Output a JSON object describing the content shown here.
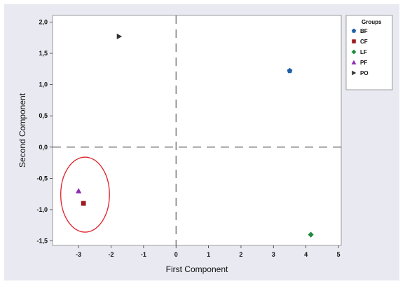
{
  "chart_data": {
    "type": "scatter",
    "xlabel": "First Component",
    "ylabel": "Second Component",
    "xlim": [
      -3.5,
      5.0
    ],
    "ylim": [
      -1.55,
      2.05
    ],
    "x_ticks": [
      "-3",
      "-2",
      "-1",
      "0",
      "1",
      "2",
      "3",
      "4",
      "5"
    ],
    "x_tick_values": [
      -3,
      -2,
      -1,
      0,
      1,
      2,
      3,
      4,
      5
    ],
    "y_ticks": [
      "2,0",
      "1,5",
      "1,0",
      "0,5",
      "0,0",
      "-0,5",
      "-1,0",
      "-1,5"
    ],
    "y_tick_values": [
      2.0,
      1.5,
      1.0,
      0.5,
      0.0,
      -0.5,
      -1.0,
      -1.5
    ],
    "grid": false,
    "reference_lines": {
      "x": 0,
      "y": 0,
      "style": "dashed"
    },
    "legend": {
      "title": "Groups",
      "placement": "right-top",
      "entries": [
        {
          "label": "BF",
          "marker": "pentagon",
          "color": "#1f5fa8"
        },
        {
          "label": "CF",
          "marker": "square",
          "color": "#9b1b20"
        },
        {
          "label": "LF",
          "marker": "diamond",
          "color": "#1e8a3c"
        },
        {
          "label": "PF",
          "marker": "triangle-up",
          "color": "#8a2db5"
        },
        {
          "label": "PO",
          "marker": "triangle-right",
          "color": "#333333"
        }
      ]
    },
    "series": [
      {
        "name": "BF",
        "x": [
          3.5
        ],
        "y": [
          1.22
        ]
      },
      {
        "name": "CF",
        "x": [
          -2.85
        ],
        "y": [
          -0.9
        ]
      },
      {
        "name": "LF",
        "x": [
          4.15
        ],
        "y": [
          -1.4
        ]
      },
      {
        "name": "PF",
        "x": [
          -3.0
        ],
        "y": [
          -0.7
        ]
      },
      {
        "name": "PO",
        "x": [
          -1.75
        ],
        "y": [
          1.77
        ]
      }
    ],
    "annotations": [
      {
        "type": "ellipse",
        "color": "#e0202a",
        "cx": -2.8,
        "cy": -0.76,
        "rx": 0.75,
        "ry": 0.6
      }
    ]
  }
}
